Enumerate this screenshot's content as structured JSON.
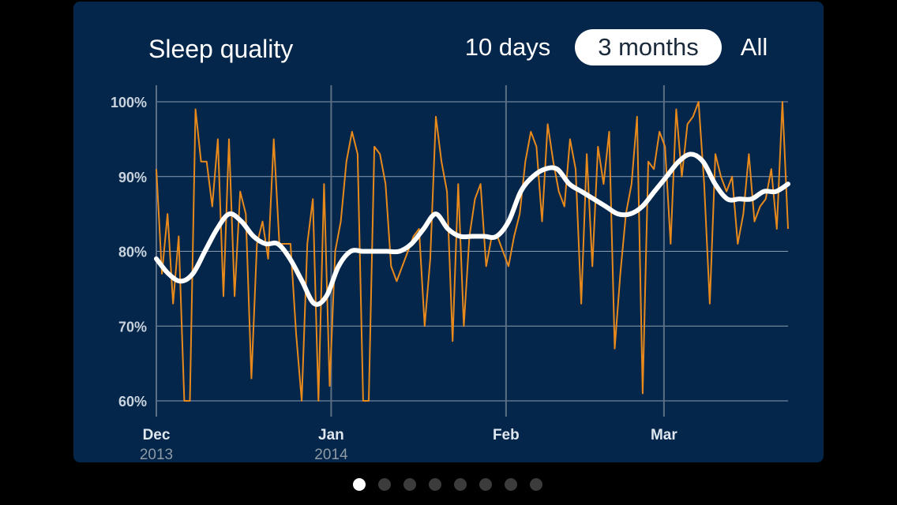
{
  "header": {
    "title": "Sleep quality",
    "ranges": [
      {
        "label": "10 days",
        "selected": false
      },
      {
        "label": "3 months",
        "selected": true
      },
      {
        "label": "All",
        "selected": false
      }
    ]
  },
  "colors": {
    "background": "#000000",
    "card": "#04264a",
    "grid": "#8a9bb0",
    "nightly_line": "#e8891c",
    "trend_line": "#ffffff",
    "selected_pill": "#ffffff"
  },
  "chart_data": {
    "type": "line",
    "title": "Sleep quality",
    "y_unit": "%",
    "ylim": [
      60,
      100
    ],
    "y_ticks": [
      60,
      70,
      80,
      90,
      100
    ],
    "y_tick_labels": [
      "60%",
      "70%",
      "80%",
      "90%",
      "100%"
    ],
    "x_range": [
      "2013-12-01",
      "2014-03-23"
    ],
    "x_ticks": [
      {
        "date": "2013-12-01",
        "month": "Dec",
        "year": "2013"
      },
      {
        "date": "2014-01-01",
        "month": "Jan",
        "year": "2014"
      },
      {
        "date": "2014-02-01",
        "month": "Feb",
        "year": ""
      },
      {
        "date": "2014-03-01",
        "month": "Mar",
        "year": ""
      }
    ],
    "grid": true,
    "legend": "none",
    "series": [
      {
        "role": "nightly",
        "color": "#e8891c",
        "values": [
          91,
          77,
          85,
          73,
          82,
          60,
          60,
          99,
          92,
          92,
          86,
          95,
          74,
          95,
          74,
          88,
          85,
          63,
          81,
          84,
          79,
          95,
          81,
          81,
          81,
          69,
          60,
          81,
          87,
          60,
          89,
          62,
          80,
          84,
          92,
          96,
          93,
          60,
          60,
          94,
          93,
          89,
          78,
          76,
          78,
          80,
          82,
          83,
          70,
          79,
          98,
          92,
          88,
          68,
          89,
          70,
          82,
          87,
          89,
          78,
          82,
          82,
          80,
          78,
          82,
          85,
          92,
          96,
          94,
          84,
          97,
          92,
          88,
          86,
          95,
          91,
          73,
          93,
          78,
          94,
          89,
          96,
          67,
          77,
          85,
          89,
          98,
          61,
          92,
          91,
          96,
          94,
          81,
          99,
          90,
          97,
          98,
          100,
          89,
          73,
          93,
          90,
          88,
          90,
          81,
          85,
          93,
          84,
          86,
          87,
          91,
          83,
          100,
          83
        ]
      },
      {
        "role": "trend",
        "color": "#ffffff",
        "values": [
          79,
          77,
          76,
          77,
          80,
          83,
          85,
          84,
          82,
          81,
          81,
          79,
          76,
          73,
          74,
          78,
          80,
          80,
          80,
          80,
          80,
          81,
          83,
          85,
          83,
          82,
          82,
          82,
          82,
          84,
          88,
          90,
          91,
          91,
          89,
          88,
          87,
          86,
          85,
          85,
          86,
          88,
          90,
          92,
          93,
          92,
          89,
          87,
          87,
          87,
          88,
          88,
          89
        ]
      }
    ]
  },
  "pager": {
    "count": 8,
    "active": 0
  }
}
